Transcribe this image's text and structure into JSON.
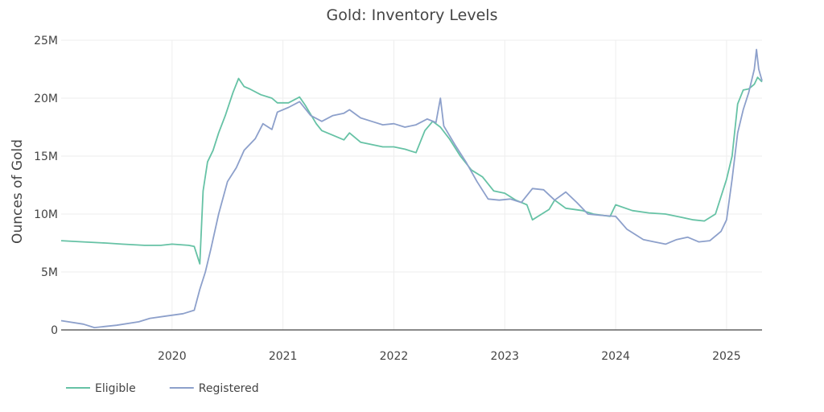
{
  "chart_data": {
    "type": "line",
    "title": "Gold: Inventory Levels",
    "xlabel": "",
    "ylabel": "Ounces of Gold",
    "xlim": [
      2019.0,
      2025.32
    ],
    "ylim": [
      0,
      25000000
    ],
    "x_ticks": [
      2020,
      2021,
      2022,
      2023,
      2024,
      2025
    ],
    "x_tick_labels": [
      "2020",
      "2021",
      "2022",
      "2023",
      "2024",
      "2025"
    ],
    "y_ticks": [
      0,
      5000000,
      10000000,
      15000000,
      20000000,
      25000000
    ],
    "y_tick_labels": [
      "0",
      "5M",
      "10M",
      "15M",
      "20M",
      "25M"
    ],
    "grid": true,
    "legend_position": "bottom-left",
    "series": [
      {
        "name": "Eligible",
        "color": "#66c2a5",
        "points": [
          [
            2019.0,
            7700000
          ],
          [
            2019.2,
            7600000
          ],
          [
            2019.4,
            7500000
          ],
          [
            2019.55,
            7400000
          ],
          [
            2019.75,
            7300000
          ],
          [
            2019.9,
            7300000
          ],
          [
            2020.0,
            7400000
          ],
          [
            2020.15,
            7300000
          ],
          [
            2020.2,
            7200000
          ],
          [
            2020.25,
            5700000
          ],
          [
            2020.28,
            12000000
          ],
          [
            2020.32,
            14500000
          ],
          [
            2020.37,
            15500000
          ],
          [
            2020.42,
            17000000
          ],
          [
            2020.48,
            18500000
          ],
          [
            2020.55,
            20500000
          ],
          [
            2020.6,
            21700000
          ],
          [
            2020.65,
            21000000
          ],
          [
            2020.7,
            20800000
          ],
          [
            2020.8,
            20300000
          ],
          [
            2020.9,
            20000000
          ],
          [
            2020.95,
            19600000
          ],
          [
            2021.05,
            19600000
          ],
          [
            2021.15,
            20100000
          ],
          [
            2021.2,
            19400000
          ],
          [
            2021.3,
            17800000
          ],
          [
            2021.35,
            17200000
          ],
          [
            2021.45,
            16800000
          ],
          [
            2021.55,
            16400000
          ],
          [
            2021.6,
            17000000
          ],
          [
            2021.7,
            16200000
          ],
          [
            2021.8,
            16000000
          ],
          [
            2021.9,
            15800000
          ],
          [
            2022.0,
            15800000
          ],
          [
            2022.1,
            15600000
          ],
          [
            2022.2,
            15300000
          ],
          [
            2022.28,
            17200000
          ],
          [
            2022.35,
            18000000
          ],
          [
            2022.42,
            17500000
          ],
          [
            2022.5,
            16500000
          ],
          [
            2022.6,
            15000000
          ],
          [
            2022.7,
            13800000
          ],
          [
            2022.8,
            13200000
          ],
          [
            2022.9,
            12000000
          ],
          [
            2023.0,
            11800000
          ],
          [
            2023.1,
            11200000
          ],
          [
            2023.2,
            10800000
          ],
          [
            2023.25,
            9500000
          ],
          [
            2023.3,
            9800000
          ],
          [
            2023.4,
            10400000
          ],
          [
            2023.45,
            11200000
          ],
          [
            2023.55,
            10500000
          ],
          [
            2023.7,
            10300000
          ],
          [
            2023.8,
            10000000
          ],
          [
            2023.95,
            9800000
          ],
          [
            2024.0,
            10800000
          ],
          [
            2024.15,
            10300000
          ],
          [
            2024.3,
            10100000
          ],
          [
            2024.45,
            10000000
          ],
          [
            2024.6,
            9700000
          ],
          [
            2024.7,
            9500000
          ],
          [
            2024.8,
            9400000
          ],
          [
            2024.9,
            10000000
          ],
          [
            2024.95,
            11500000
          ],
          [
            2025.0,
            13000000
          ],
          [
            2025.05,
            15000000
          ],
          [
            2025.1,
            19500000
          ],
          [
            2025.15,
            20700000
          ],
          [
            2025.2,
            20800000
          ],
          [
            2025.25,
            21200000
          ],
          [
            2025.28,
            21800000
          ],
          [
            2025.32,
            21400000
          ]
        ]
      },
      {
        "name": "Registered",
        "color": "#8da0cb",
        "points": [
          [
            2019.0,
            800000
          ],
          [
            2019.2,
            500000
          ],
          [
            2019.3,
            200000
          ],
          [
            2019.5,
            400000
          ],
          [
            2019.7,
            700000
          ],
          [
            2019.8,
            1000000
          ],
          [
            2019.95,
            1200000
          ],
          [
            2020.1,
            1400000
          ],
          [
            2020.2,
            1700000
          ],
          [
            2020.25,
            3500000
          ],
          [
            2020.3,
            5000000
          ],
          [
            2020.35,
            7000000
          ],
          [
            2020.42,
            10000000
          ],
          [
            2020.5,
            12800000
          ],
          [
            2020.58,
            14000000
          ],
          [
            2020.65,
            15500000
          ],
          [
            2020.75,
            16500000
          ],
          [
            2020.82,
            17800000
          ],
          [
            2020.9,
            17300000
          ],
          [
            2020.95,
            18800000
          ],
          [
            2021.05,
            19200000
          ],
          [
            2021.15,
            19700000
          ],
          [
            2021.25,
            18500000
          ],
          [
            2021.35,
            18000000
          ],
          [
            2021.45,
            18500000
          ],
          [
            2021.55,
            18700000
          ],
          [
            2021.6,
            19000000
          ],
          [
            2021.7,
            18300000
          ],
          [
            2021.8,
            18000000
          ],
          [
            2021.9,
            17700000
          ],
          [
            2022.0,
            17800000
          ],
          [
            2022.1,
            17500000
          ],
          [
            2022.2,
            17700000
          ],
          [
            2022.3,
            18200000
          ],
          [
            2022.38,
            17900000
          ],
          [
            2022.42,
            20000000
          ],
          [
            2022.45,
            17600000
          ],
          [
            2022.55,
            16000000
          ],
          [
            2022.65,
            14500000
          ],
          [
            2022.75,
            12800000
          ],
          [
            2022.85,
            11300000
          ],
          [
            2022.95,
            11200000
          ],
          [
            2023.05,
            11300000
          ],
          [
            2023.15,
            11000000
          ],
          [
            2023.25,
            12200000
          ],
          [
            2023.35,
            12100000
          ],
          [
            2023.45,
            11200000
          ],
          [
            2023.55,
            11900000
          ],
          [
            2023.65,
            11000000
          ],
          [
            2023.75,
            10000000
          ],
          [
            2023.85,
            9900000
          ],
          [
            2024.0,
            9800000
          ],
          [
            2024.1,
            8700000
          ],
          [
            2024.25,
            7800000
          ],
          [
            2024.35,
            7600000
          ],
          [
            2024.45,
            7400000
          ],
          [
            2024.55,
            7800000
          ],
          [
            2024.65,
            8000000
          ],
          [
            2024.75,
            7600000
          ],
          [
            2024.85,
            7700000
          ],
          [
            2024.95,
            8500000
          ],
          [
            2025.0,
            9500000
          ],
          [
            2025.05,
            13000000
          ],
          [
            2025.1,
            17000000
          ],
          [
            2025.15,
            19000000
          ],
          [
            2025.2,
            20500000
          ],
          [
            2025.25,
            22500000
          ],
          [
            2025.27,
            24200000
          ],
          [
            2025.29,
            22500000
          ],
          [
            2025.32,
            21500000
          ]
        ]
      }
    ]
  }
}
